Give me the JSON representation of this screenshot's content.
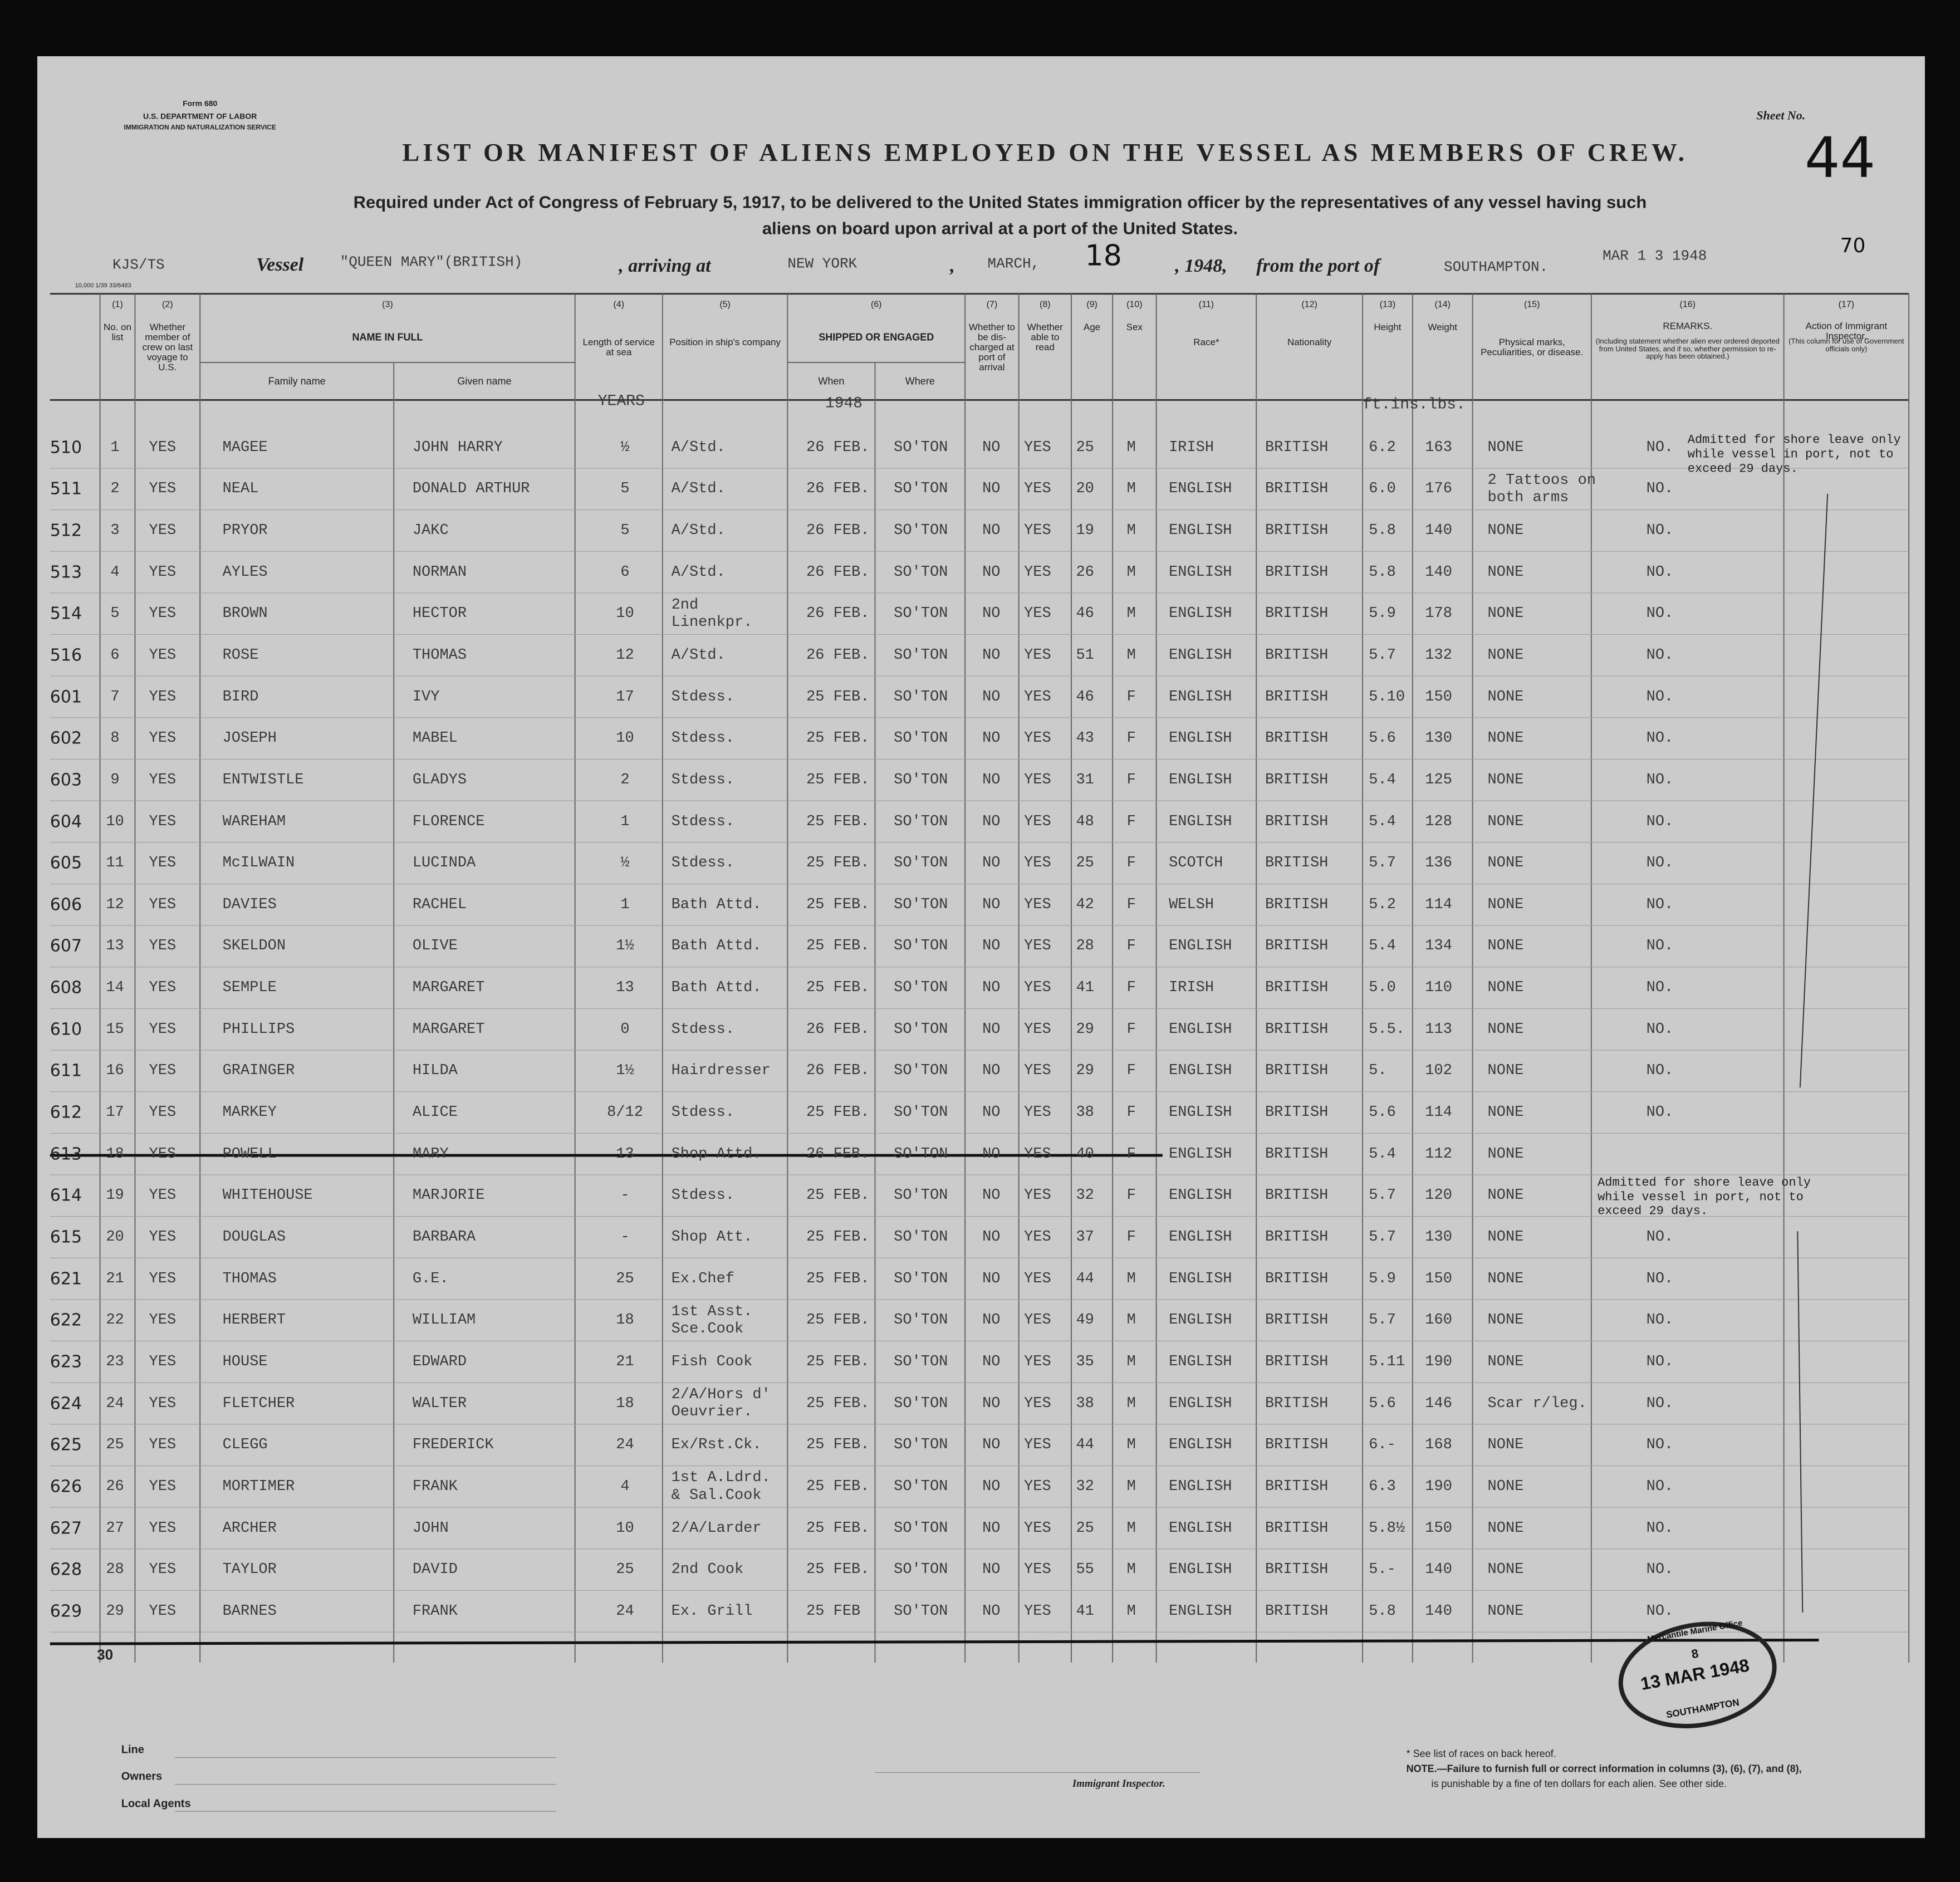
{
  "form": {
    "number": "Form 680",
    "dept": "U.S. DEPARTMENT OF LABOR",
    "service": "IMMIGRATION AND NATURALIZATION SERVICE",
    "print": "10,000 1/39 33/6483"
  },
  "sheet": {
    "label": "Sheet No.",
    "value": "44"
  },
  "title": "LIST OR MANIFEST OF ALIENS EMPLOYED ON THE VESSEL AS MEMBERS OF CREW.",
  "subtitle": [
    "Required under Act of Congress of February 5, 1917, to be delivered to the United States immigration officer by the representatives of any vessel having such",
    "aliens on board upon arrival at a port of the United States."
  ],
  "vessel_line": {
    "ref": "KJS/TS",
    "vessel_label": "Vessel",
    "vessel": "\"QUEEN MARY\"(BRITISH)",
    "arriving_label": ", arriving at",
    "port": "NEW YORK",
    "comma": ",",
    "month": "MARCH,",
    "day": "18",
    "year": ", 1948,",
    "from_label": "from the port of",
    "from_port": "SOUTHAMPTON.",
    "stamp_date": "MAR 1 3 1948",
    "number": "70"
  },
  "columns": [
    {
      "num": "(1)",
      "label": "No. on list"
    },
    {
      "num": "(2)",
      "label": "Whether member of crew on last voyage to U.S."
    },
    {
      "num": "(3)",
      "label": "NAME IN FULL",
      "sub": [
        "Family name",
        "Given name"
      ]
    },
    {
      "num": "(4)",
      "label": "Length of service at sea"
    },
    {
      "num": "(5)",
      "label": "Position in ship's company"
    },
    {
      "num": "(6)",
      "label": "SHIPPED OR ENGAGED",
      "sub": [
        "When",
        "Where"
      ]
    },
    {
      "num": "(7)",
      "label": "Whether to be dis-charged at port of arrival"
    },
    {
      "num": "(8)",
      "label": "Whether able to read"
    },
    {
      "num": "(9)",
      "label": "Age"
    },
    {
      "num": "(10)",
      "label": "Sex"
    },
    {
      "num": "(11)",
      "label": "Race*"
    },
    {
      "num": "(12)",
      "label": "Nationality"
    },
    {
      "num": "(13)",
      "label": "Height"
    },
    {
      "num": "(14)",
      "label": "Weight"
    },
    {
      "num": "(15)",
      "label": "Physical marks, Peculiarities, or disease."
    },
    {
      "num": "(16)",
      "label": "REMARKS.",
      "note": "(Including statement whether alien ever ordered deported from United States, and if so, whether permission to re-apply has been obtained.)"
    },
    {
      "num": "(17)",
      "label": "Action of Immigrant Inspector.",
      "note": "(This column for use of Government officials only)"
    }
  ],
  "units": [
    "YEARS",
    "1948",
    "ft.ins.lbs."
  ],
  "rows": [
    [
      "510",
      "1",
      "YES",
      "MAGEE",
      "JOHN HARRY",
      "½",
      "A/Std.",
      "26 FEB.",
      "SO'TON",
      "NO",
      "YES",
      "25",
      "M",
      "IRISH",
      "BRITISH",
      "6.2",
      "163",
      "NONE",
      "NO."
    ],
    [
      "511",
      "2",
      "YES",
      "NEAL",
      "DONALD ARTHUR",
      "5",
      "A/Std.",
      "26 FEB.",
      "SO'TON",
      "NO",
      "YES",
      "20",
      "M",
      "ENGLISH",
      "BRITISH",
      "6.0",
      "176",
      [
        "2 Tattoos on",
        "both arms"
      ],
      "NO."
    ],
    [
      "512",
      "3",
      "YES",
      "PRYOR",
      "JAKC",
      "5",
      "A/Std.",
      "26 FEB.",
      "SO'TON",
      "NO",
      "YES",
      "19",
      "M",
      "ENGLISH",
      "BRITISH",
      "5.8",
      "140",
      "NONE",
      "NO."
    ],
    [
      "513",
      "4",
      "YES",
      "AYLES",
      "NORMAN",
      "6",
      "A/Std.",
      "26 FEB.",
      "SO'TON",
      "NO",
      "YES",
      "26",
      "M",
      "ENGLISH",
      "BRITISH",
      "5.8",
      "140",
      "NONE",
      "NO."
    ],
    [
      "514",
      "5",
      "YES",
      "BROWN",
      "HECTOR",
      "10",
      [
        "2nd",
        "Linenkpr."
      ],
      "26 FEB.",
      "SO'TON",
      "NO",
      "YES",
      "46",
      "M",
      "ENGLISH",
      "BRITISH",
      "5.9",
      "178",
      "NONE",
      "NO."
    ],
    [
      "516",
      "6",
      "YES",
      "ROSE",
      "THOMAS",
      "12",
      "A/Std.",
      "26 FEB.",
      "SO'TON",
      "NO",
      "YES",
      "51",
      "M",
      "ENGLISH",
      "BRITISH",
      "5.7",
      "132",
      "NONE",
      "NO."
    ],
    [
      "601",
      "7",
      "YES",
      "BIRD",
      "IVY",
      "17",
      "Stdess.",
      "25 FEB.",
      "SO'TON",
      "NO",
      "YES",
      "46",
      "F",
      "ENGLISH",
      "BRITISH",
      "5.10",
      "150",
      "NONE",
      "NO."
    ],
    [
      "602",
      "8",
      "YES",
      "JOSEPH",
      "MABEL",
      "10",
      "Stdess.",
      "25 FEB.",
      "SO'TON",
      "NO",
      "YES",
      "43",
      "F",
      "ENGLISH",
      "BRITISH",
      "5.6",
      "130",
      "NONE",
      "NO."
    ],
    [
      "603",
      "9",
      "YES",
      "ENTWISTLE",
      "GLADYS",
      "2",
      "Stdess.",
      "25 FEB.",
      "SO'TON",
      "NO",
      "YES",
      "31",
      "F",
      "ENGLISH",
      "BRITISH",
      "5.4",
      "125",
      "NONE",
      "NO."
    ],
    [
      "604",
      "10",
      "YES",
      "WAREHAM",
      "FLORENCE",
      "1",
      "Stdess.",
      "25 FEB.",
      "SO'TON",
      "NO",
      "YES",
      "48",
      "F",
      "ENGLISH",
      "BRITISH",
      "5.4",
      "128",
      "NONE",
      "NO."
    ],
    [
      "605",
      "11",
      "YES",
      "McILWAIN",
      "LUCINDA",
      "½",
      "Stdess.",
      "25 FEB.",
      "SO'TON",
      "NO",
      "YES",
      "25",
      "F",
      "SCOTCH",
      "BRITISH",
      "5.7",
      "136",
      "NONE",
      "NO."
    ],
    [
      "606",
      "12",
      "YES",
      "DAVIES",
      "RACHEL",
      "1",
      "Bath Attd.",
      "25 FEB.",
      "SO'TON",
      "NO",
      "YES",
      "42",
      "F",
      "WELSH",
      "BRITISH",
      "5.2",
      "114",
      "NONE",
      "NO."
    ],
    [
      "607",
      "13",
      "YES",
      "SKELDON",
      "OLIVE",
      "1½",
      "Bath Attd.",
      "25 FEB.",
      "SO'TON",
      "NO",
      "YES",
      "28",
      "F",
      "ENGLISH",
      "BRITISH",
      "5.4",
      "134",
      "NONE",
      "NO."
    ],
    [
      "608",
      "14",
      "YES",
      "SEMPLE",
      "MARGARET",
      "13",
      "Bath Attd.",
      "25 FEB.",
      "SO'TON",
      "NO",
      "YES",
      "41",
      "F",
      "IRISH",
      "BRITISH",
      "5.0",
      "110",
      "NONE",
      "NO."
    ],
    [
      "610",
      "15",
      "YES",
      "PHILLIPS",
      "MARGARET",
      "0",
      "Stdess.",
      "26 FEB.",
      "SO'TON",
      "NO",
      "YES",
      "29",
      "F",
      "ENGLISH",
      "BRITISH",
      "5.5.",
      "113",
      "NONE",
      "NO."
    ],
    [
      "611",
      "16",
      "YES",
      "GRAINGER",
      "HILDA",
      "1½",
      "Hairdresser",
      "26 FEB.",
      "SO'TON",
      "NO",
      "YES",
      "29",
      "F",
      "ENGLISH",
      "BRITISH",
      "5.",
      "102",
      "NONE",
      "NO."
    ],
    [
      "612",
      "17",
      "YES",
      "MARKEY",
      "ALICE",
      "8/12",
      "Stdess.",
      "25 FEB.",
      "SO'TON",
      "NO",
      "YES",
      "38",
      "F",
      "ENGLISH",
      "BRITISH",
      "5.6",
      "114",
      "NONE",
      "NO."
    ],
    [
      "613",
      "18",
      "YES",
      "POWELL",
      "MARY",
      "13",
      "Shop Attd.",
      "26 FEB.",
      "SO'TON",
      "NO",
      "YES",
      "40",
      "F",
      "ENGLISH",
      "BRITISH",
      "5.4",
      "112",
      "NONE",
      ""
    ],
    [
      "614",
      "19",
      "YES",
      "WHITEHOUSE",
      "MARJORIE",
      "-",
      "Stdess.",
      "25 FEB.",
      "SO'TON",
      "NO",
      "YES",
      "32",
      "F",
      "ENGLISH",
      "BRITISH",
      "5.7",
      "120",
      "NONE",
      ""
    ],
    [
      "615",
      "20",
      "YES",
      "DOUGLAS",
      "BARBARA",
      "-",
      "Shop Att.",
      "25 FEB.",
      "SO'TON",
      "NO",
      "YES",
      "37",
      "F",
      "ENGLISH",
      "BRITISH",
      "5.7",
      "130",
      "NONE",
      "NO."
    ],
    [
      "621",
      "21",
      "YES",
      "THOMAS",
      "G.E.",
      "25",
      "Ex.Chef",
      "25 FEB.",
      "SO'TON",
      "NO",
      "YES",
      "44",
      "M",
      "ENGLISH",
      "BRITISH",
      "5.9",
      "150",
      "NONE",
      "NO."
    ],
    [
      "622",
      "22",
      "YES",
      "HERBERT",
      "WILLIAM",
      "18",
      [
        "1st Asst.",
        "Sce.Cook"
      ],
      "25 FEB.",
      "SO'TON",
      "NO",
      "YES",
      "49",
      "M",
      "ENGLISH",
      "BRITISH",
      "5.7",
      "160",
      "NONE",
      "NO."
    ],
    [
      "623",
      "23",
      "YES",
      "HOUSE",
      "EDWARD",
      "21",
      "Fish Cook",
      "25 FEB.",
      "SO'TON",
      "NO",
      "YES",
      "35",
      "M",
      "ENGLISH",
      "BRITISH",
      "5.11",
      "190",
      "NONE",
      "NO."
    ],
    [
      "624",
      "24",
      "YES",
      "FLETCHER",
      "WALTER",
      "18",
      [
        "2/A/Hors d'",
        "Oeuvrier."
      ],
      "25 FEB.",
      "SO'TON",
      "NO",
      "YES",
      "38",
      "M",
      "ENGLISH",
      "BRITISH",
      "5.6",
      "146",
      "Scar r/leg.",
      "NO."
    ],
    [
      "625",
      "25",
      "YES",
      "CLEGG",
      "FREDERICK",
      "24",
      "Ex/Rst.Ck.",
      "25 FEB.",
      "SO'TON",
      "NO",
      "YES",
      "44",
      "M",
      "ENGLISH",
      "BRITISH",
      "6.-",
      "168",
      "NONE",
      "NO."
    ],
    [
      "626",
      "26",
      "YES",
      "MORTIMER",
      "FRANK",
      "4",
      [
        "1st A.Ldrd.",
        "& Sal.Cook"
      ],
      "25 FEB.",
      "SO'TON",
      "NO",
      "YES",
      "32",
      "M",
      "ENGLISH",
      "BRITISH",
      "6.3",
      "190",
      "NONE",
      "NO."
    ],
    [
      "627",
      "27",
      "YES",
      "ARCHER",
      "JOHN",
      "10",
      "2/A/Larder",
      "25 FEB.",
      "SO'TON",
      "NO",
      "YES",
      "25",
      "M",
      "ENGLISH",
      "BRITISH",
      "5.8½",
      "150",
      "NONE",
      "NO."
    ],
    [
      "628",
      "28",
      "YES",
      "TAYLOR",
      "DAVID",
      "25",
      "2nd Cook",
      "25 FEB.",
      "SO'TON",
      "NO",
      "YES",
      "55",
      "M",
      "ENGLISH",
      "BRITISH",
      "5.-",
      "140",
      "NONE",
      "NO."
    ],
    [
      "629",
      "29",
      "YES",
      "BARNES",
      "FRANK",
      "24",
      "Ex. Grill",
      "25 FEB",
      "SO'TON",
      "NO",
      "YES",
      "41",
      "M",
      "ENGLISH",
      "BRITISH",
      "5.8",
      "140",
      "NONE",
      "NO."
    ]
  ],
  "last_row": "30",
  "annotations": [
    [
      "Admitted for shore leave only",
      "while vessel in port, not to",
      "exceed 29 days."
    ],
    [
      "Admitted for shore leave only",
      "while vessel in port, not to",
      "exceed 29 days."
    ]
  ],
  "footer": {
    "fields": [
      "Line",
      "Owners",
      "Local Agents"
    ],
    "inspector": "Immigrant Inspector.",
    "notes": [
      "* See list of races on back hereof.",
      "NOTE.—Failure to furnish full or correct information in columns (3), (6), (7), and (8),",
      "is punishable by a fine of ten dollars for each alien. See other side."
    ],
    "stamp": [
      "Mercantile Marine Office",
      "8",
      "13 MAR 1948",
      "SOUTHAMPTON"
    ]
  }
}
